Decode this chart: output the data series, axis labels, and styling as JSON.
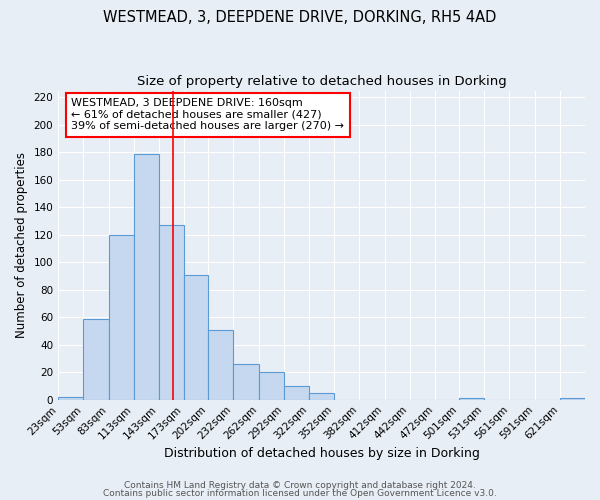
{
  "title1": "WESTMEAD, 3, DEEPDENE DRIVE, DORKING, RH5 4AD",
  "title2": "Size of property relative to detached houses in Dorking",
  "xlabel": "Distribution of detached houses by size in Dorking",
  "ylabel": "Number of detached properties",
  "bin_labels": [
    "23sqm",
    "53sqm",
    "83sqm",
    "113sqm",
    "143sqm",
    "173sqm",
    "202sqm",
    "232sqm",
    "262sqm",
    "292sqm",
    "322sqm",
    "352sqm",
    "382sqm",
    "412sqm",
    "442sqm",
    "472sqm",
    "501sqm",
    "531sqm",
    "561sqm",
    "591sqm",
    "621sqm"
  ],
  "bar_heights": [
    2,
    59,
    120,
    179,
    127,
    91,
    51,
    26,
    20,
    10,
    5,
    0,
    0,
    0,
    0,
    0,
    1,
    0,
    0,
    0,
    1
  ],
  "bar_color": "#c5d8ef",
  "bar_edge_color": "#5b9bd5",
  "bin_edges": [
    23,
    53,
    83,
    113,
    143,
    173,
    202,
    232,
    262,
    292,
    322,
    352,
    382,
    412,
    442,
    472,
    501,
    531,
    561,
    591,
    621,
    651
  ],
  "red_line_x": 160,
  "annotation_text": "WESTMEAD, 3 DEEPDENE DRIVE: 160sqm\n← 61% of detached houses are smaller (427)\n39% of semi-detached houses are larger (270) →",
  "annotation_box_color": "white",
  "annotation_box_edge": "red",
  "ylim": [
    0,
    225
  ],
  "yticks": [
    0,
    20,
    40,
    60,
    80,
    100,
    120,
    140,
    160,
    180,
    200,
    220
  ],
  "footer1": "Contains HM Land Registry data © Crown copyright and database right 2024.",
  "footer2": "Contains public sector information licensed under the Open Government Licence v3.0.",
  "background_color": "#e8eef5",
  "plot_bg_color": "#e8eef5",
  "grid_color": "#ffffff",
  "title1_fontsize": 10.5,
  "title2_fontsize": 9.5,
  "xlabel_fontsize": 9,
  "ylabel_fontsize": 8.5,
  "tick_fontsize": 7.5,
  "annot_fontsize": 8,
  "footer_fontsize": 6.5
}
